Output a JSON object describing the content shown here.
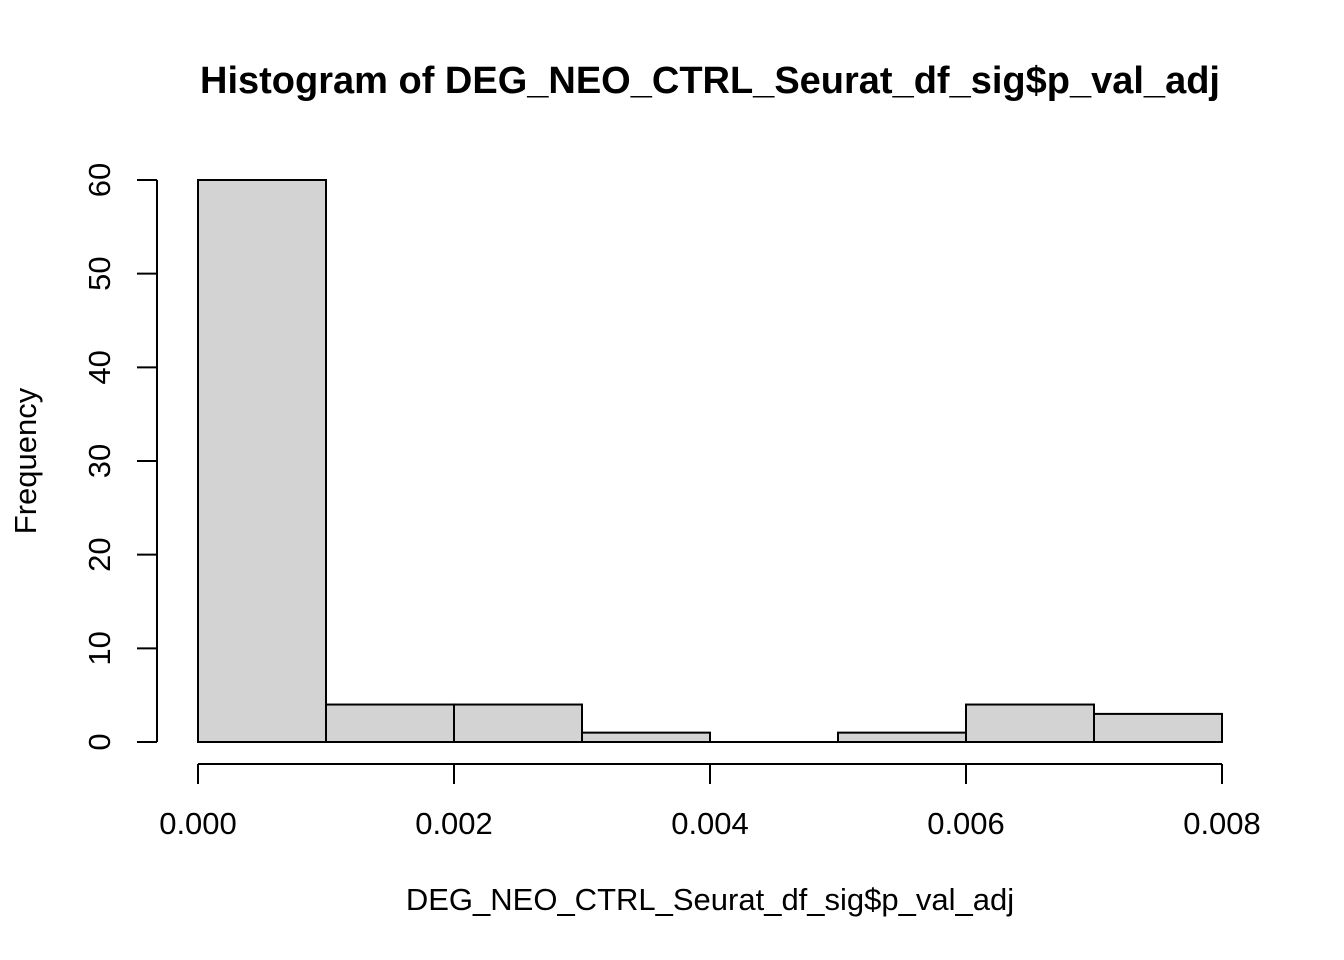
{
  "chart_data": {
    "type": "bar",
    "title": "Histogram of DEG_NEO_CTRL_Seurat_df_sig$p_val_adj",
    "xlabel": "DEG_NEO_CTRL_Seurat_df_sig$p_val_adj",
    "ylabel": "Frequency",
    "bins": [
      {
        "x0": 0.0,
        "x1": 0.001,
        "count": 60
      },
      {
        "x0": 0.001,
        "x1": 0.002,
        "count": 4
      },
      {
        "x0": 0.002,
        "x1": 0.003,
        "count": 4
      },
      {
        "x0": 0.003,
        "x1": 0.004,
        "count": 1
      },
      {
        "x0": 0.004,
        "x1": 0.005,
        "count": 0
      },
      {
        "x0": 0.005,
        "x1": 0.006,
        "count": 1
      },
      {
        "x0": 0.006,
        "x1": 0.007,
        "count": 4
      },
      {
        "x0": 0.007,
        "x1": 0.008,
        "count": 3
      }
    ],
    "xlim": [
      0,
      0.008
    ],
    "ylim": [
      0,
      60
    ],
    "x_ticks": [
      {
        "value": 0.0,
        "label": "0.000"
      },
      {
        "value": 0.002,
        "label": "0.002"
      },
      {
        "value": 0.004,
        "label": "0.004"
      },
      {
        "value": 0.006,
        "label": "0.006"
      },
      {
        "value": 0.008,
        "label": "0.008"
      }
    ],
    "y_ticks": [
      {
        "value": 0,
        "label": "0"
      },
      {
        "value": 10,
        "label": "10"
      },
      {
        "value": 20,
        "label": "20"
      },
      {
        "value": 30,
        "label": "30"
      },
      {
        "value": 40,
        "label": "40"
      },
      {
        "value": 50,
        "label": "50"
      },
      {
        "value": 60,
        "label": "60"
      }
    ],
    "grid": false,
    "colors": {
      "bar_fill": "#d3d3d3",
      "bar_stroke": "#000000"
    }
  }
}
